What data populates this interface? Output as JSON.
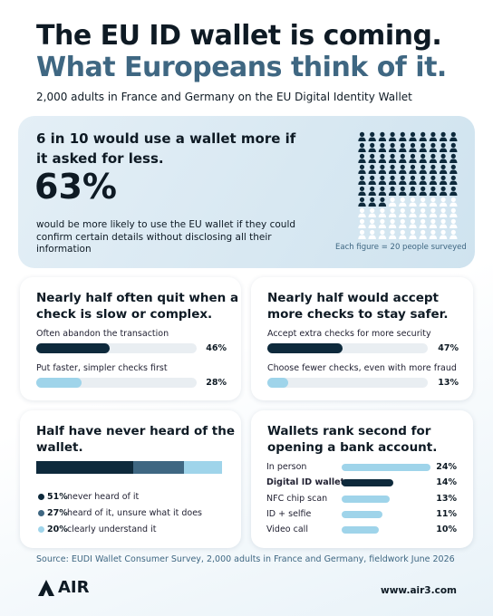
{
  "header": {
    "title": "The EU ID wallet is coming.",
    "title_second": "What Europeans think of it.",
    "subtitle": "2,000 adults in France and Germany on the EU Digital Identity Wallet"
  },
  "hero": {
    "heading": "6 in 10 would use a wallet more if it asked for less.",
    "stat": {
      "value": 63,
      "label": "63%"
    },
    "description": "would be more likely to use the EU wallet if they could confirm certain details without disclosing all their information",
    "figure_note": "Each figure = 20 people surveyed",
    "dark_color": "#0e2a3c"
  },
  "panels": [
    {
      "type": "bar",
      "title": "Nearly half often quit when a check is slow or complex.",
      "items": [
        {
          "label": "Often abandon the transaction",
          "value": 46,
          "value_label": "46%",
          "color": "#0e2a3c"
        },
        {
          "label": "Put faster, simpler checks first",
          "value": 28,
          "value_label": "28%",
          "color": "#9fd4ea"
        }
      ]
    },
    {
      "type": "bar",
      "title": "Nearly half would accept more checks to stay safer.",
      "items": [
        {
          "label": "Accept extra checks for more security",
          "value": 47,
          "value_label": "47%",
          "color": "#0e2a3c"
        },
        {
          "label": "Choose fewer checks, even with more fraud",
          "value": 13,
          "value_label": "13%",
          "color": "#9fd4ea"
        }
      ]
    },
    {
      "type": "stacked",
      "title": "Half have never heard of the wallet.",
      "items": [
        {
          "label": "never heard of it",
          "value": 51,
          "value_label": "51%",
          "color": "#0e2a3c"
        },
        {
          "label": "heard of it, unsure what it does",
          "value": 27,
          "value_label": "27%",
          "color": "#3f6782"
        },
        {
          "label": "clearly understand it",
          "value": 20,
          "value_label": "20%",
          "color": "#9fd4ea"
        }
      ]
    },
    {
      "type": "rank",
      "title": "Wallets rank second for opening a bank account.",
      "items": [
        {
          "label": "In person",
          "value": 24,
          "value_label": "24%",
          "color": "#9fd4ea"
        },
        {
          "label": "Digital ID wallet",
          "value": 14,
          "value_label": "14%",
          "color": "#0e2a3c",
          "highlight": true
        },
        {
          "label": "NFC chip scan",
          "value": 13,
          "value_label": "13%",
          "color": "#9fd4ea"
        },
        {
          "label": "ID + selfie",
          "value": 11,
          "value_label": "11%",
          "color": "#9fd4ea"
        },
        {
          "label": "Video call",
          "value": 10,
          "value_label": "10%",
          "color": "#9fd4ea"
        }
      ]
    }
  ],
  "footer": {
    "source": "Source: EUDI Wallet Consumer Survey, 2,000 adults in France and Germany, fieldwork June 2026",
    "logo": "AIR",
    "url": "www.air3.com"
  }
}
